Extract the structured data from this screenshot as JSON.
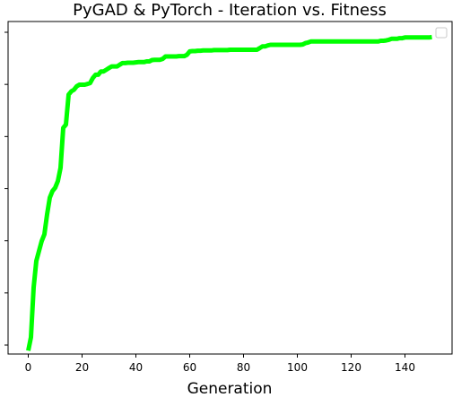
{
  "chart_data": {
    "type": "line",
    "title": "PyGAD & PyTorch - Iteration vs. Fitness",
    "xlabel": "Generation",
    "ylabel": "",
    "xlim": [
      -7.5,
      157.5
    ],
    "ylim": [
      0,
      1
    ],
    "x_ticks": [
      0,
      20,
      40,
      60,
      80,
      100,
      120,
      140
    ],
    "y_tick_count": 7,
    "grid": false,
    "legend": "top-right (empty)",
    "series": [
      {
        "color": "#00ff00",
        "x": [
          0,
          1,
          2,
          3,
          4,
          5,
          6,
          7,
          8,
          9,
          10,
          11,
          12,
          13,
          14,
          15,
          16,
          17,
          18,
          19,
          20,
          21,
          22,
          23,
          24,
          25,
          26,
          27,
          28,
          29,
          30,
          31,
          32,
          33,
          34,
          35,
          36,
          37,
          38,
          39,
          40,
          41,
          42,
          43,
          44,
          45,
          46,
          47,
          48,
          49,
          50,
          51,
          52,
          53,
          54,
          55,
          56,
          57,
          58,
          59,
          60,
          61,
          62,
          63,
          64,
          65,
          66,
          67,
          68,
          69,
          70,
          71,
          72,
          73,
          74,
          75,
          76,
          77,
          78,
          79,
          80,
          81,
          82,
          83,
          84,
          85,
          86,
          87,
          88,
          89,
          90,
          91,
          92,
          93,
          94,
          95,
          96,
          97,
          98,
          99,
          100,
          101,
          102,
          103,
          104,
          105,
          106,
          107,
          108,
          109,
          110,
          111,
          112,
          113,
          114,
          115,
          116,
          117,
          118,
          119,
          120,
          121,
          122,
          123,
          124,
          125,
          126,
          127,
          128,
          129,
          130,
          131,
          132,
          133,
          134,
          135,
          136,
          137,
          138,
          139,
          140,
          141,
          142,
          143,
          144,
          145,
          146,
          147,
          148,
          149,
          150
        ],
        "y": [
          0.01,
          0.05,
          0.2,
          0.28,
          0.31,
          0.34,
          0.36,
          0.42,
          0.47,
          0.49,
          0.5,
          0.52,
          0.56,
          0.68,
          0.69,
          0.78,
          0.79,
          0.795,
          0.805,
          0.81,
          0.81,
          0.81,
          0.812,
          0.815,
          0.83,
          0.84,
          0.84,
          0.85,
          0.85,
          0.855,
          0.86,
          0.865,
          0.865,
          0.865,
          0.87,
          0.875,
          0.875,
          0.876,
          0.876,
          0.876,
          0.877,
          0.878,
          0.878,
          0.878,
          0.88,
          0.88,
          0.884,
          0.885,
          0.885,
          0.885,
          0.888,
          0.895,
          0.895,
          0.895,
          0.895,
          0.895,
          0.896,
          0.896,
          0.896,
          0.9,
          0.91,
          0.911,
          0.911,
          0.912,
          0.912,
          0.913,
          0.913,
          0.913,
          0.913,
          0.914,
          0.914,
          0.914,
          0.914,
          0.914,
          0.914,
          0.915,
          0.915,
          0.915,
          0.915,
          0.915,
          0.915,
          0.915,
          0.915,
          0.915,
          0.915,
          0.915,
          0.92,
          0.925,
          0.925,
          0.928,
          0.93,
          0.93,
          0.93,
          0.93,
          0.93,
          0.93,
          0.93,
          0.93,
          0.93,
          0.93,
          0.93,
          0.93,
          0.931,
          0.935,
          0.937,
          0.94,
          0.94,
          0.94,
          0.94,
          0.94,
          0.94,
          0.94,
          0.94,
          0.94,
          0.94,
          0.94,
          0.94,
          0.94,
          0.94,
          0.94,
          0.94,
          0.94,
          0.94,
          0.94,
          0.94,
          0.94,
          0.94,
          0.94,
          0.94,
          0.94,
          0.94,
          0.942,
          0.942,
          0.943,
          0.945,
          0.948,
          0.948,
          0.948,
          0.95,
          0.95,
          0.952,
          0.952,
          0.952,
          0.952,
          0.952,
          0.952,
          0.952,
          0.952,
          0.952,
          0.952,
          0.953
        ]
      }
    ]
  }
}
